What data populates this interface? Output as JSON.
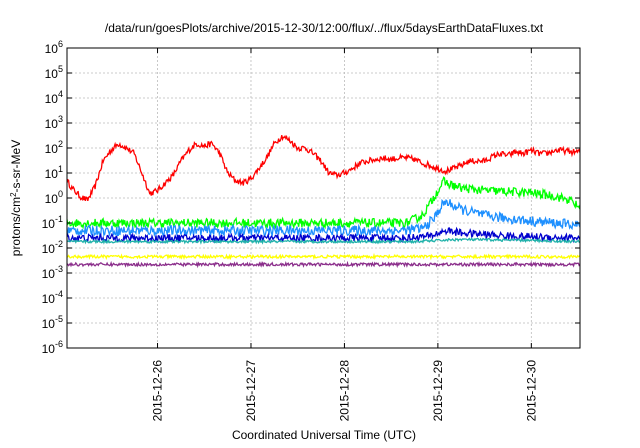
{
  "chart_data": {
    "type": "line",
    "title": "/data/run/goesPlots/archive/2015-12-30/12:00/flux/../flux/5daysEarthDataFluxes.txt",
    "xlabel": "Coordinated Universal Time (UTC)",
    "ylabel": {
      "base": "protons/cm",
      "sup": "2",
      "rest": "-s-sr-MeV"
    },
    "y_scale": "log",
    "ylim": [
      1e-06,
      1000000.0
    ],
    "xlim": [
      "2015-12-25 00:45",
      "2015-12-30 12:30"
    ],
    "grid": true,
    "y_ticks": [
      {
        "value": 1e-06,
        "base": "10",
        "exp": "-6"
      },
      {
        "value": 1e-05,
        "base": "10",
        "exp": "-5"
      },
      {
        "value": 0.0001,
        "base": "10",
        "exp": "-4"
      },
      {
        "value": 0.001,
        "base": "10",
        "exp": "-3"
      },
      {
        "value": 0.01,
        "base": "10",
        "exp": "-2"
      },
      {
        "value": 0.1,
        "base": "10",
        "exp": "-1"
      },
      {
        "value": 1,
        "base": "10",
        "exp": "0"
      },
      {
        "value": 10,
        "base": "10",
        "exp": "1"
      },
      {
        "value": 100,
        "base": "10",
        "exp": "2"
      },
      {
        "value": 1000,
        "base": "10",
        "exp": "3"
      },
      {
        "value": 10000,
        "base": "10",
        "exp": "4"
      },
      {
        "value": 100000,
        "base": "10",
        "exp": "5"
      },
      {
        "value": 1000000,
        "base": "10",
        "exp": "6"
      }
    ],
    "x_ticks": [
      {
        "value": "2015-12-26 00:00",
        "label": "2015-12-26"
      },
      {
        "value": "2015-12-27 00:00",
        "label": "2015-12-27"
      },
      {
        "value": "2015-12-28 00:00",
        "label": "2015-12-28"
      },
      {
        "value": "2015-12-29 00:00",
        "label": "2015-12-29"
      },
      {
        "value": "2015-12-30 00:00",
        "label": "2015-12-30"
      }
    ],
    "series": [
      {
        "color": "#ff0000",
        "noise": 0.12,
        "points": [
          [
            "2015-12-25 00:45",
            5
          ],
          [
            "2015-12-25 02:00",
            2.5
          ],
          [
            "2015-12-25 04:00",
            1.2
          ],
          [
            "2015-12-25 06:00",
            0.8
          ],
          [
            "2015-12-25 08:00",
            3
          ],
          [
            "2015-12-25 10:00",
            30
          ],
          [
            "2015-12-25 12:00",
            80
          ],
          [
            "2015-12-25 14:00",
            150
          ],
          [
            "2015-12-25 16:00",
            100
          ],
          [
            "2015-12-25 18:00",
            60
          ],
          [
            "2015-12-25 20:00",
            10
          ],
          [
            "2015-12-25 22:00",
            1.5
          ],
          [
            "2015-12-26 00:00",
            2
          ],
          [
            "2015-12-26 02:00",
            4
          ],
          [
            "2015-12-26 04:00",
            8
          ],
          [
            "2015-12-26 06:00",
            30
          ],
          [
            "2015-12-26 08:00",
            80
          ],
          [
            "2015-12-26 10:00",
            150
          ],
          [
            "2015-12-26 12:00",
            120
          ],
          [
            "2015-12-26 14:00",
            150
          ],
          [
            "2015-12-26 16:00",
            60
          ],
          [
            "2015-12-26 18:00",
            10
          ],
          [
            "2015-12-26 20:00",
            5
          ],
          [
            "2015-12-26 22:00",
            4
          ],
          [
            "2015-12-27 00:00",
            6
          ],
          [
            "2015-12-27 02:00",
            15
          ],
          [
            "2015-12-27 04:00",
            40
          ],
          [
            "2015-12-27 06:00",
            150
          ],
          [
            "2015-12-27 08:00",
            300
          ],
          [
            "2015-12-27 10:00",
            200
          ],
          [
            "2015-12-27 12:00",
            100
          ],
          [
            "2015-12-27 14:00",
            100
          ],
          [
            "2015-12-27 16:00",
            60
          ],
          [
            "2015-12-27 18:00",
            30
          ],
          [
            "2015-12-27 20:00",
            10
          ],
          [
            "2015-12-27 22:00",
            8
          ],
          [
            "2015-12-28 00:00",
            10
          ],
          [
            "2015-12-28 02:00",
            15
          ],
          [
            "2015-12-28 04:00",
            25
          ],
          [
            "2015-12-28 06:00",
            30
          ],
          [
            "2015-12-28 08:00",
            35
          ],
          [
            "2015-12-28 10:00",
            40
          ],
          [
            "2015-12-28 12:00",
            35
          ],
          [
            "2015-12-28 14:00",
            40
          ],
          [
            "2015-12-28 16:00",
            40
          ],
          [
            "2015-12-28 18:00",
            35
          ],
          [
            "2015-12-28 20:00",
            25
          ],
          [
            "2015-12-28 22:00",
            20
          ],
          [
            "2015-12-29 00:00",
            15
          ],
          [
            "2015-12-29 02:00",
            12
          ],
          [
            "2015-12-29 04:00",
            15
          ],
          [
            "2015-12-29 06:00",
            20
          ],
          [
            "2015-12-29 08:00",
            30
          ],
          [
            "2015-12-29 10:00",
            30
          ],
          [
            "2015-12-29 12:00",
            30
          ],
          [
            "2015-12-29 14:00",
            45
          ],
          [
            "2015-12-29 16:00",
            60
          ],
          [
            "2015-12-29 18:00",
            50
          ],
          [
            "2015-12-29 20:00",
            70
          ],
          [
            "2015-12-29 22:00",
            60
          ],
          [
            "2015-12-30 00:00",
            80
          ],
          [
            "2015-12-30 02:00",
            60
          ],
          [
            "2015-12-30 04:00",
            60
          ],
          [
            "2015-12-30 06:00",
            80
          ],
          [
            "2015-12-30 08:00",
            80
          ],
          [
            "2015-12-30 10:00",
            70
          ],
          [
            "2015-12-30 12:30",
            70
          ]
        ]
      },
      {
        "color": "#00ff00",
        "noise": 0.18,
        "points": [
          [
            "2015-12-25 00:45",
            0.1
          ],
          [
            "2015-12-28 12:00",
            0.1
          ],
          [
            "2015-12-28 16:00",
            0.1
          ],
          [
            "2015-12-28 20:00",
            0.2
          ],
          [
            "2015-12-28 22:00",
            0.6
          ],
          [
            "2015-12-29 00:00",
            2
          ],
          [
            "2015-12-29 01:30",
            4.5
          ],
          [
            "2015-12-29 03:00",
            3.5
          ],
          [
            "2015-12-29 06:00",
            2.5
          ],
          [
            "2015-12-29 12:00",
            2
          ],
          [
            "2015-12-29 18:00",
            1.8
          ],
          [
            "2015-12-30 00:00",
            1.6
          ],
          [
            "2015-12-30 06:00",
            1.2
          ],
          [
            "2015-12-30 10:00",
            0.8
          ],
          [
            "2015-12-30 12:30",
            0.4
          ]
        ]
      },
      {
        "color": "#1e90ff",
        "noise": 0.2,
        "points": [
          [
            "2015-12-25 00:45",
            0.05
          ],
          [
            "2015-12-28 14:00",
            0.05
          ],
          [
            "2015-12-28 20:00",
            0.06
          ],
          [
            "2015-12-28 23:00",
            0.15
          ],
          [
            "2015-12-29 01:00",
            0.5
          ],
          [
            "2015-12-29 02:00",
            0.7
          ],
          [
            "2015-12-29 06:00",
            0.35
          ],
          [
            "2015-12-29 12:00",
            0.2
          ],
          [
            "2015-12-29 18:00",
            0.15
          ],
          [
            "2015-12-30 00:00",
            0.12
          ],
          [
            "2015-12-30 06:00",
            0.1
          ],
          [
            "2015-12-30 12:30",
            0.08
          ]
        ]
      },
      {
        "color": "#0000cd",
        "noise": 0.15,
        "points": [
          [
            "2015-12-25 00:45",
            0.025
          ],
          [
            "2015-12-28 16:00",
            0.025
          ],
          [
            "2015-12-28 22:00",
            0.03
          ],
          [
            "2015-12-29 02:00",
            0.05
          ],
          [
            "2015-12-29 06:00",
            0.04
          ],
          [
            "2015-12-29 12:00",
            0.035
          ],
          [
            "2015-12-29 18:00",
            0.03
          ],
          [
            "2015-12-30 00:00",
            0.028
          ],
          [
            "2015-12-30 12:30",
            0.025
          ]
        ]
      },
      {
        "color": "#20b2aa",
        "noise": 0.05,
        "points": [
          [
            "2015-12-25 00:45",
            0.018
          ],
          [
            "2015-12-28 18:00",
            0.018
          ],
          [
            "2015-12-29 00:00",
            0.02
          ],
          [
            "2015-12-29 06:00",
            0.022
          ],
          [
            "2015-12-30 00:00",
            0.02
          ],
          [
            "2015-12-30 12:30",
            0.018
          ]
        ]
      },
      {
        "color": "#ffff00",
        "noise": 0.06,
        "points": [
          [
            "2015-12-25 00:45",
            0.0045
          ],
          [
            "2015-12-30 12:30",
            0.0045
          ]
        ]
      },
      {
        "color": "#8b2e8b",
        "noise": 0.06,
        "points": [
          [
            "2015-12-25 00:45",
            0.0022
          ],
          [
            "2015-12-30 12:30",
            0.0022
          ]
        ]
      }
    ]
  }
}
